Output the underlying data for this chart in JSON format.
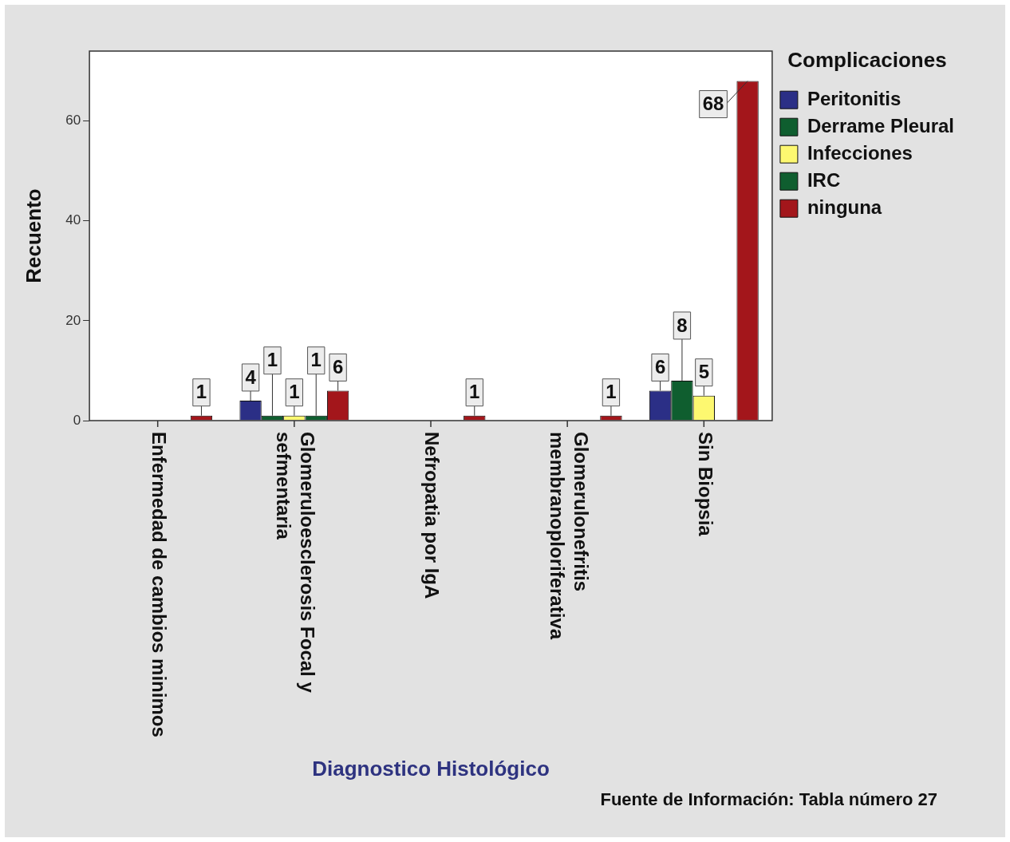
{
  "chart_data": {
    "type": "bar",
    "xlabel": "Diagnostico Histológico",
    "ylabel": "Recuento",
    "legend_title": "Complicaciones",
    "categories": [
      "Enfermedad de cambios minimos",
      "Glomeruloesclerosis Focal y sefmentaria",
      "Nefropatia por IgA",
      "Glomerulonefritis membranoploriferativa",
      "Sin Biopsia"
    ],
    "series": [
      {
        "name": "Peritonitis",
        "color": "#2b2f86",
        "values": [
          null,
          4,
          null,
          null,
          6
        ]
      },
      {
        "name": "Derrame Pleural",
        "color": "#0f5e2f",
        "values": [
          null,
          1,
          null,
          null,
          8
        ]
      },
      {
        "name": "Infecciones",
        "color": "#fdf870",
        "values": [
          null,
          1,
          null,
          null,
          5
        ]
      },
      {
        "name": "IRC",
        "color": "#0f5e2f",
        "values": [
          null,
          1,
          null,
          null,
          null
        ]
      },
      {
        "name": "ninguna",
        "color": "#a3161b",
        "values": [
          1,
          6,
          1,
          1,
          68
        ]
      }
    ],
    "ylim": [
      0,
      74
    ],
    "yticks": [
      0,
      20,
      40,
      60
    ],
    "grid": false,
    "legend": "top right",
    "data_labels": true,
    "annotations": [
      "Fuente de Información: Tabla número 27"
    ]
  }
}
